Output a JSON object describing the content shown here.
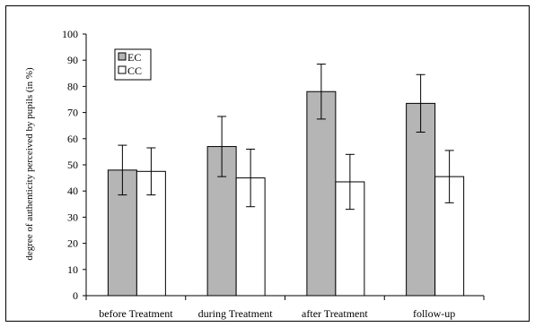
{
  "chart_data": {
    "type": "bar",
    "title": "",
    "xlabel": "",
    "ylabel": "degree of authenticity perceived by pupils (in %)",
    "ylim": [
      0,
      100
    ],
    "yticks": [
      0,
      10,
      20,
      30,
      40,
      50,
      60,
      70,
      80,
      90,
      100
    ],
    "categories": [
      "before Treatment",
      "during Treatment",
      "after Treatment",
      "follow-up"
    ],
    "series": [
      {
        "name": "EC",
        "color": "#b5b5b5",
        "values": [
          48,
          57,
          78,
          73.5
        ],
        "error": [
          9.5,
          11.5,
          10.5,
          11
        ]
      },
      {
        "name": "CC",
        "color": "#ffffff",
        "values": [
          47.5,
          45,
          43.5,
          45.5
        ],
        "error": [
          9,
          11,
          10.5,
          10
        ]
      }
    ],
    "legend_position": "top-left",
    "grid": false
  }
}
